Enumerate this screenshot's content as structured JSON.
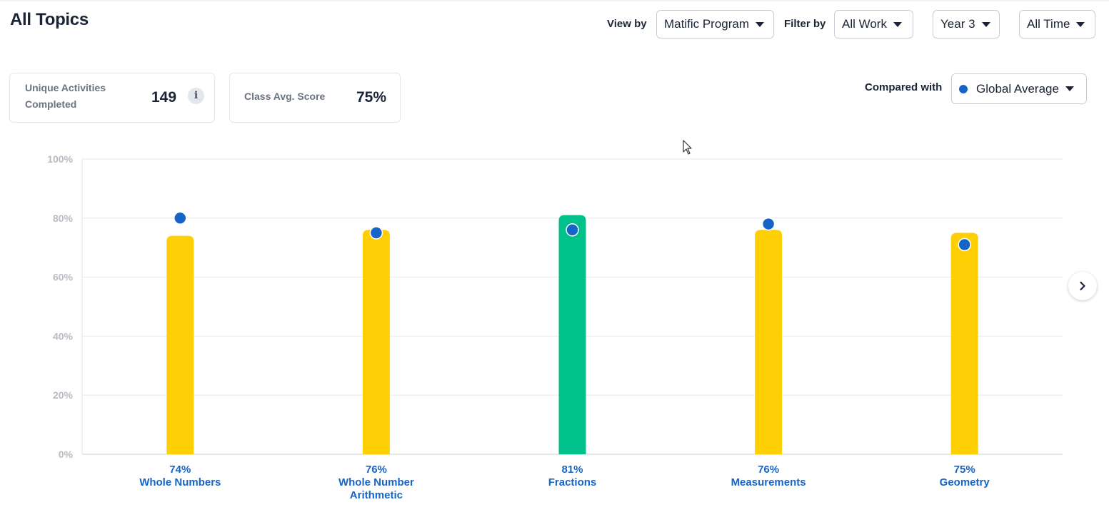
{
  "header": {
    "title": "All Topics",
    "view_by_label": "View by",
    "view_by_value": "Matific Program",
    "filter_by_label": "Filter by",
    "filter_work_value": "All Work",
    "filter_year_value": "Year 3",
    "filter_time_value": "All Time"
  },
  "stats": {
    "activities_label_line1": "Unique Activities",
    "activities_label_line2": "Completed",
    "activities_value": "149",
    "class_avg_label": "Class Avg. Score",
    "class_avg_value": "75%"
  },
  "compare": {
    "label": "Compared with",
    "value": "Global Average"
  },
  "colors": {
    "bar_default": "#ffcf06",
    "bar_highlight": "#00c08b",
    "comparison_dot": "#1664c7",
    "category_text": "#1664c7"
  },
  "chart_data": {
    "type": "bar",
    "title": "",
    "xlabel": "",
    "ylabel": "",
    "ylim": [
      0,
      100
    ],
    "y_ticks": [
      "0%",
      "20%",
      "40%",
      "60%",
      "80%",
      "100%"
    ],
    "categories": [
      {
        "name": [
          "Whole Numbers"
        ],
        "value_label": "74%"
      },
      {
        "name": [
          "Whole Number",
          "Arithmetic"
        ],
        "value_label": "76%"
      },
      {
        "name": [
          "Fractions"
        ],
        "value_label": "81%"
      },
      {
        "name": [
          "Measurements"
        ],
        "value_label": "76%"
      },
      {
        "name": [
          "Geometry"
        ],
        "value_label": "75%"
      }
    ],
    "series": [
      {
        "values": [
          74,
          76,
          81,
          76,
          75
        ],
        "highlight": [
          false,
          false,
          true,
          false,
          false
        ]
      },
      {
        "name": "Global Average",
        "values": [
          80,
          75,
          76,
          78,
          71
        ]
      }
    ],
    "grid": true
  }
}
